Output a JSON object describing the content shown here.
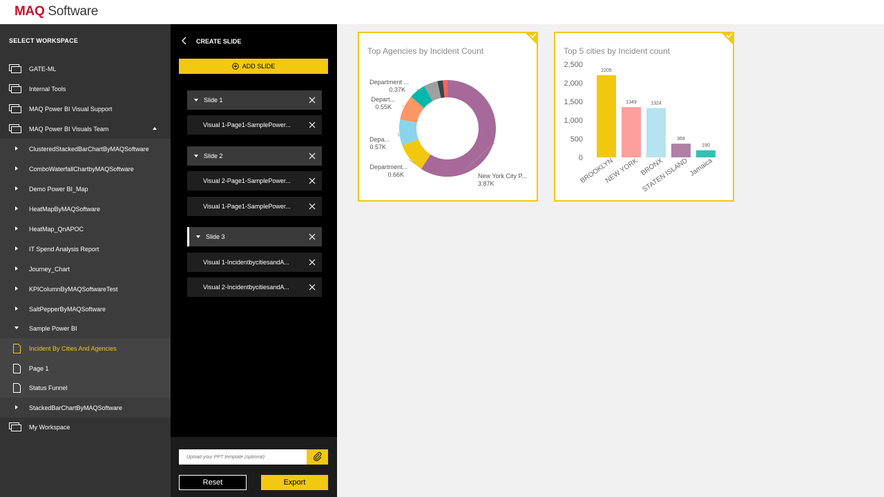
{
  "header": {
    "logo_maq": "MAQ",
    "logo_software": " Software"
  },
  "workspace_panel": {
    "title": "SELECT WORKSPACE",
    "items": [
      {
        "label": "GATE-ML",
        "type": "workspace"
      },
      {
        "label": "Internal Tools",
        "type": "workspace"
      },
      {
        "label": "MAQ Power BI Visual Support",
        "type": "workspace"
      },
      {
        "label": "MAQ Power BI Visuals Team",
        "type": "workspace",
        "expanded": true
      },
      {
        "label": "ClusteredStackedBarChartByMAQSoftware",
        "type": "report"
      },
      {
        "label": "ComboWaterfallChartbyMAQSoftware",
        "type": "report"
      },
      {
        "label": "Demo Power BI_Map",
        "type": "report"
      },
      {
        "label": "HeatMapByMAQSoftware",
        "type": "report"
      },
      {
        "label": "HeatMap_QnAPOC",
        "type": "report"
      },
      {
        "label": "IT Spend Analysis Report",
        "type": "report"
      },
      {
        "label": "Journey_Chart",
        "type": "report"
      },
      {
        "label": "KPIColumnByMAQSoftwareTest",
        "type": "report"
      },
      {
        "label": "SaltPepperByMAQSoftware",
        "type": "report"
      },
      {
        "label": "Sample Power BI",
        "type": "report",
        "expanded": true
      },
      {
        "label": "Incident By Cities And Agencies",
        "type": "page",
        "active": true
      },
      {
        "label": "Page 1",
        "type": "page"
      },
      {
        "label": "Status Funnel",
        "type": "page"
      },
      {
        "label": "StackedBarChartByMAQSoftware",
        "type": "report"
      },
      {
        "label": "My Workspace",
        "type": "workspace"
      }
    ]
  },
  "create_panel": {
    "title": "CREATE SLIDE",
    "add_slide_label": "ADD SLIDE",
    "slides": [
      {
        "label": "Slide 1",
        "visuals": [
          "Visual 1-Page1-SamplePower..."
        ]
      },
      {
        "label": "Slide 2",
        "visuals": [
          "Visual 2-Page1-SamplePower...",
          "Visual 1-Page1-SamplePower..."
        ]
      },
      {
        "label": "Slide 3",
        "selected": true,
        "visuals": [
          "Visual 1-IncidentbycitiesandA...",
          "Visual 2-IncidentbycitiesandA..."
        ]
      }
    ],
    "upload_placeholder": "Upload your PPT template (optional)",
    "reset_label": "Reset",
    "export_label": "Export"
  },
  "colors": {
    "accent": "#f2c811",
    "brand_red": "#c8102e"
  },
  "chart_data": [
    {
      "type": "pie",
      "variant": "donut",
      "title": "Top Agencies by Incident Count",
      "slices": [
        {
          "label": "New York City P...",
          "value_label": "3.87K",
          "value": 3.87,
          "color": "#a66999"
        },
        {
          "label": "Department...",
          "value_label": "0.66K",
          "value": 0.66,
          "color": "#f2c80f"
        },
        {
          "label": "Depa...",
          "value_label": "0.57K",
          "value": 0.57,
          "color": "#8ad4eb"
        },
        {
          "label": "Depart...",
          "value_label": "0.55K",
          "value": 0.55,
          "color": "#fe9666"
        },
        {
          "label": "Department ...",
          "value_label": "0.37K",
          "value": 0.37,
          "color": "#01b8aa"
        },
        {
          "label": "",
          "value_label": "",
          "value": 0.3,
          "color": "#a0a0a0"
        },
        {
          "label": "",
          "value_label": "",
          "value": 0.12,
          "color": "#374649"
        },
        {
          "label": "",
          "value_label": "",
          "value": 0.1,
          "color": "#fd625e"
        }
      ]
    },
    {
      "type": "bar",
      "title": "Top 5 cities by Incident count",
      "categories": [
        "BROOKLYN",
        "NEW YORK",
        "BRONX",
        "STATEN ISLAND",
        "Jamaica"
      ],
      "values": [
        2205,
        1349,
        1324,
        368,
        190
      ],
      "colors": [
        "#f2c80f",
        "#fd9f9c",
        "#b5e3f0",
        "#b07fa7",
        "#33c1b3"
      ],
      "yticks": [
        "0",
        "500",
        "1,000",
        "1,500",
        "2,000",
        "2,500"
      ],
      "ylim": [
        0,
        2500
      ]
    }
  ]
}
